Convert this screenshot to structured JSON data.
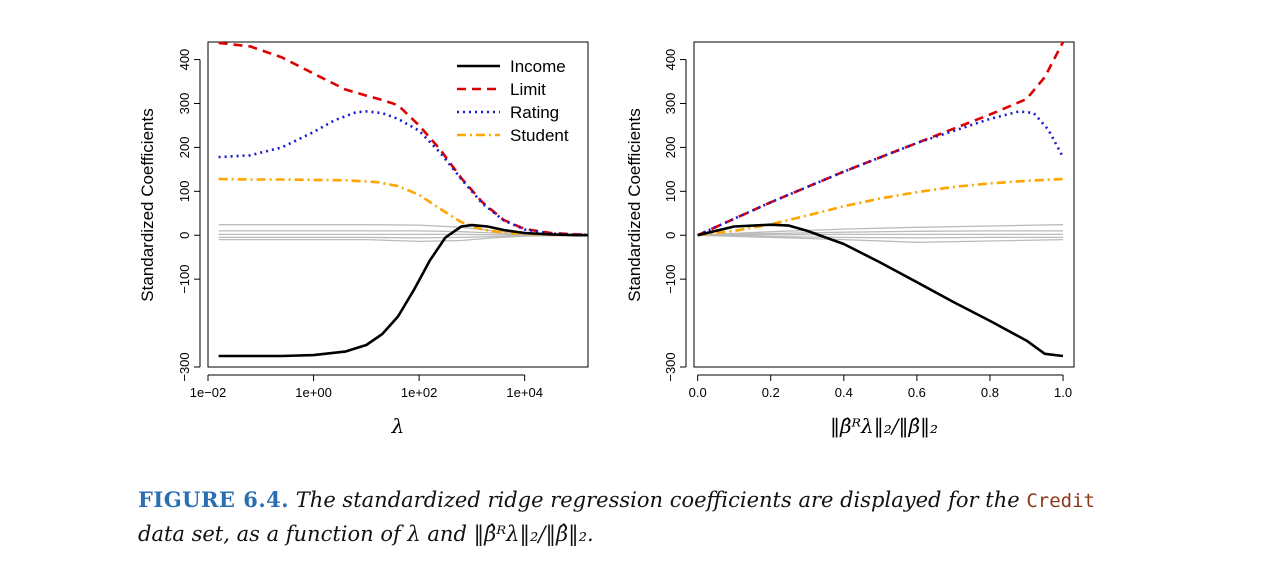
{
  "chart_data": [
    {
      "type": "line",
      "xscale": "log10",
      "xlim_log10": [
        -2,
        5.2
      ],
      "ylim": [
        -300,
        440
      ],
      "xlabel": "λ",
      "ylabel": "Standardized Coefficients",
      "x_ticks": [
        {
          "value": -2,
          "label": "1e−02"
        },
        {
          "value": 0,
          "label": "1e+00"
        },
        {
          "value": 2,
          "label": "1e+02"
        },
        {
          "value": 4,
          "label": "1e+04"
        }
      ],
      "y_ticks": [
        {
          "value": -300,
          "label": "−300"
        },
        {
          "value": -100,
          "label": "−100"
        },
        {
          "value": 0,
          "label": "0"
        },
        {
          "value": 100,
          "label": "100"
        },
        {
          "value": 200,
          "label": "200"
        },
        {
          "value": 300,
          "label": "300"
        },
        {
          "value": 400,
          "label": "400"
        }
      ],
      "legend": {
        "placement": "top-right",
        "entries": [
          {
            "label": "Income",
            "style": "solid",
            "color": "#000000"
          },
          {
            "label": "Limit",
            "style": "dashed",
            "color": "#dd0000"
          },
          {
            "label": "Rating",
            "style": "dotted",
            "color": "#1a1ad0"
          },
          {
            "label": "Student",
            "style": "dashdot",
            "color": "#ffa500"
          }
        ]
      },
      "series": [
        {
          "name": "Limit",
          "style": "dashed",
          "color": "#dd0000",
          "x": [
            -1.8,
            -1.2,
            -0.6,
            0,
            0.6,
            1.0,
            1.3,
            1.6,
            2.0,
            2.4,
            2.8,
            3.2,
            3.6,
            4.0,
            4.5,
            5.0,
            5.2
          ],
          "values": [
            438,
            430,
            405,
            368,
            332,
            318,
            308,
            296,
            250,
            195,
            130,
            75,
            35,
            14,
            5,
            2,
            1
          ]
        },
        {
          "name": "Rating",
          "style": "dotted",
          "color": "#1a1ad0",
          "x": [
            -1.8,
            -1.2,
            -0.6,
            0,
            0.4,
            0.8,
            1.0,
            1.3,
            1.6,
            2.0,
            2.4,
            2.8,
            3.2,
            3.6,
            4.0,
            4.5,
            5.0,
            5.2
          ],
          "values": [
            178,
            182,
            200,
            235,
            262,
            280,
            282,
            278,
            265,
            238,
            188,
            128,
            72,
            34,
            13,
            4,
            1,
            1
          ]
        },
        {
          "name": "Student",
          "style": "dashdot",
          "color": "#ffa500",
          "x": [
            -1.8,
            -1.2,
            -0.6,
            0,
            0.6,
            1.2,
            1.6,
            2.0,
            2.4,
            2.8,
            3.2,
            3.6,
            4.0,
            4.5,
            5.0,
            5.2
          ],
          "values": [
            128,
            127,
            127,
            126,
            125,
            121,
            112,
            92,
            60,
            30,
            13,
            6,
            3,
            1,
            0,
            0
          ]
        },
        {
          "name": "Income",
          "style": "solid",
          "color": "#000000",
          "x": [
            -1.8,
            -1.2,
            -0.6,
            0,
            0.6,
            1.0,
            1.3,
            1.6,
            1.9,
            2.2,
            2.5,
            2.8,
            3.0,
            3.3,
            3.6,
            4.0,
            4.5,
            5.0,
            5.2
          ],
          "values": [
            -275,
            -275,
            -275,
            -273,
            -265,
            -250,
            -225,
            -185,
            -125,
            -58,
            -5,
            20,
            23,
            20,
            12,
            5,
            2,
            0,
            0
          ]
        },
        {
          "name": "other-1",
          "style": "solid",
          "color": "#bbbbbb",
          "x": [
            -1.8,
            1.0,
            2.0,
            2.8,
            3.4,
            4.0,
            5.2
          ],
          "values": [
            24,
            24,
            23,
            18,
            10,
            4,
            0
          ]
        },
        {
          "name": "other-2",
          "style": "solid",
          "color": "#bbbbbb",
          "x": [
            -1.8,
            1.0,
            2.0,
            2.8,
            3.4,
            4.0,
            5.2
          ],
          "values": [
            10,
            10,
            10,
            8,
            5,
            2,
            0
          ]
        },
        {
          "name": "other-3",
          "style": "solid",
          "color": "#bbbbbb",
          "x": [
            -1.8,
            1.0,
            2.0,
            2.8,
            3.4,
            4.0,
            5.2
          ],
          "values": [
            2,
            2,
            2,
            2,
            1,
            0,
            0
          ]
        },
        {
          "name": "other-4",
          "style": "solid",
          "color": "#bbbbbb",
          "x": [
            -1.8,
            1.0,
            2.0,
            2.8,
            3.4,
            4.0,
            5.2
          ],
          "values": [
            -5,
            -5,
            -6,
            -5,
            -3,
            -1,
            0
          ]
        },
        {
          "name": "other-5",
          "style": "solid",
          "color": "#bbbbbb",
          "x": [
            -1.8,
            1.0,
            2.0,
            2.8,
            3.4,
            4.0,
            5.2
          ],
          "values": [
            -10,
            -10,
            -14,
            -12,
            -6,
            -2,
            0
          ]
        }
      ]
    },
    {
      "type": "line",
      "xlim": [
        -0.01,
        1.03
      ],
      "ylim": [
        -300,
        440
      ],
      "xlabel": "‖β̂ᴿλ‖₂/‖β̂‖₂",
      "ylabel": "Standardized Coefficients",
      "x_ticks": [
        {
          "value": 0.0,
          "label": "0.0"
        },
        {
          "value": 0.2,
          "label": "0.2"
        },
        {
          "value": 0.4,
          "label": "0.4"
        },
        {
          "value": 0.6,
          "label": "0.6"
        },
        {
          "value": 0.8,
          "label": "0.8"
        },
        {
          "value": 1.0,
          "label": "1.0"
        }
      ],
      "y_ticks": [
        {
          "value": -300,
          "label": "−300"
        },
        {
          "value": -100,
          "label": "−100"
        },
        {
          "value": 0,
          "label": "0"
        },
        {
          "value": 100,
          "label": "100"
        },
        {
          "value": 200,
          "label": "200"
        },
        {
          "value": 300,
          "label": "300"
        },
        {
          "value": 400,
          "label": "400"
        }
      ],
      "series": [
        {
          "name": "Limit",
          "style": "dashed",
          "color": "#dd0000",
          "x": [
            0,
            0.2,
            0.4,
            0.6,
            0.8,
            0.9,
            0.95,
            1.0
          ],
          "values": [
            0,
            75,
            145,
            210,
            275,
            310,
            360,
            440
          ]
        },
        {
          "name": "Rating",
          "style": "dotted",
          "color": "#1a1ad0",
          "x": [
            0,
            0.2,
            0.4,
            0.6,
            0.8,
            0.88,
            0.92,
            0.96,
            1.0
          ],
          "values": [
            0,
            75,
            145,
            210,
            265,
            282,
            278,
            240,
            178
          ]
        },
        {
          "name": "Student",
          "style": "dashdot",
          "color": "#ffa500",
          "x": [
            0,
            0.1,
            0.2,
            0.3,
            0.4,
            0.5,
            0.6,
            0.7,
            0.8,
            0.9,
            1.0
          ],
          "values": [
            0,
            10,
            25,
            45,
            66,
            84,
            98,
            110,
            118,
            124,
            128
          ]
        },
        {
          "name": "Income",
          "style": "solid",
          "color": "#000000",
          "x": [
            0,
            0.1,
            0.2,
            0.25,
            0.3,
            0.4,
            0.5,
            0.6,
            0.7,
            0.8,
            0.9,
            0.95,
            1.0
          ],
          "values": [
            0,
            20,
            24,
            22,
            10,
            -20,
            -62,
            -107,
            -152,
            -195,
            -240,
            -270,
            -275
          ]
        },
        {
          "name": "other-1",
          "style": "solid",
          "color": "#bbbbbb",
          "x": [
            0,
            0.2,
            0.4,
            0.6,
            0.8,
            1.0
          ],
          "values": [
            0,
            8,
            14,
            18,
            21,
            24
          ]
        },
        {
          "name": "other-2",
          "style": "solid",
          "color": "#bbbbbb",
          "x": [
            0,
            0.2,
            0.4,
            0.6,
            0.8,
            1.0
          ],
          "values": [
            0,
            4,
            7,
            9,
            10,
            10
          ]
        },
        {
          "name": "other-3",
          "style": "solid",
          "color": "#bbbbbb",
          "x": [
            0,
            0.2,
            0.4,
            0.6,
            0.8,
            1.0
          ],
          "values": [
            0,
            1,
            2,
            2,
            2,
            2
          ]
        },
        {
          "name": "other-4",
          "style": "solid",
          "color": "#bbbbbb",
          "x": [
            0,
            0.2,
            0.4,
            0.6,
            0.8,
            1.0
          ],
          "values": [
            0,
            -3,
            -5,
            -6,
            -5,
            -5
          ]
        },
        {
          "name": "other-5",
          "style": "solid",
          "color": "#bbbbbb",
          "x": [
            0,
            0.2,
            0.4,
            0.6,
            0.8,
            1.0
          ],
          "values": [
            0,
            -5,
            -10,
            -16,
            -13,
            -10
          ]
        }
      ]
    }
  ],
  "caption": {
    "label": "FIGURE 6.4.",
    "part1": "The standardized ridge regression coefficients are displayed for the",
    "dataset": "Credit",
    "part2": "data set, as a function of λ and ‖β̂ᴿλ‖₂/‖β̂‖₂."
  }
}
